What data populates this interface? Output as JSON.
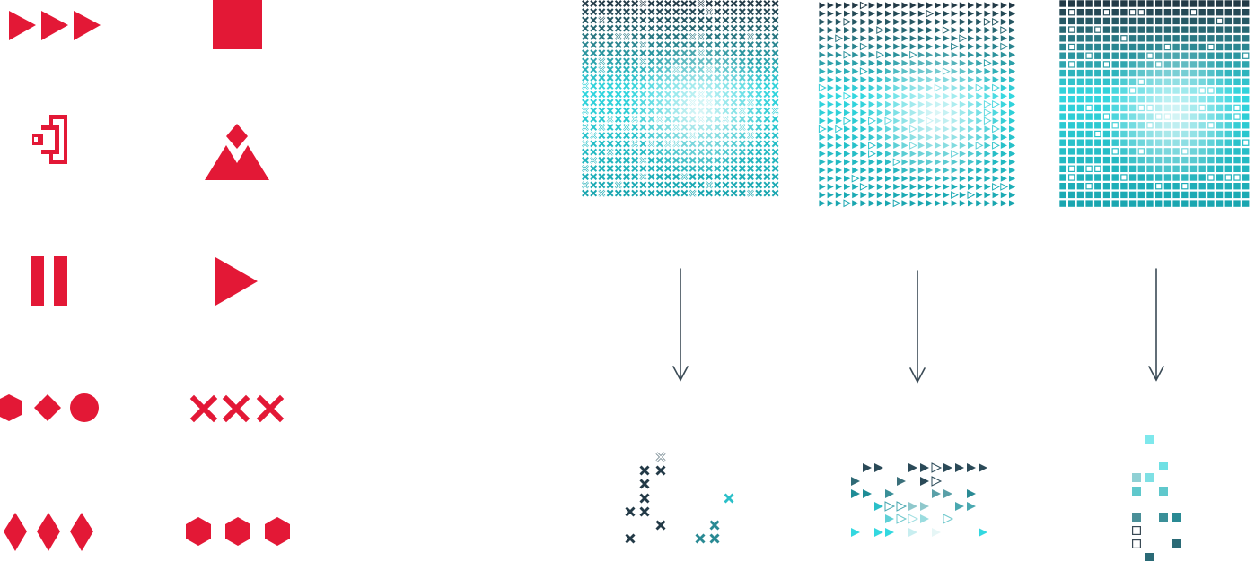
{
  "colors": {
    "accent": "#e31836",
    "dark": "#233a47",
    "teal": "#1aa6b0",
    "cyan": "#33d8e0",
    "white": "#f2fbfb",
    "arrow": "#3a4a55"
  },
  "icons": [
    "fast-forward-icon",
    "stop-icon",
    "bracket-icon",
    "mountain-diamond-icon",
    "pause-icon",
    "play-icon",
    "hexagon-diamond-circle-icon",
    "triple-x-icon",
    "triple-diamond-icon",
    "triple-hexagon-icon"
  ],
  "patterns": [
    {
      "shape": "cross",
      "selected_shape": "cross"
    },
    {
      "shape": "triangle",
      "selected_shape": "triangle"
    },
    {
      "shape": "square",
      "selected_shape": "square"
    }
  ]
}
